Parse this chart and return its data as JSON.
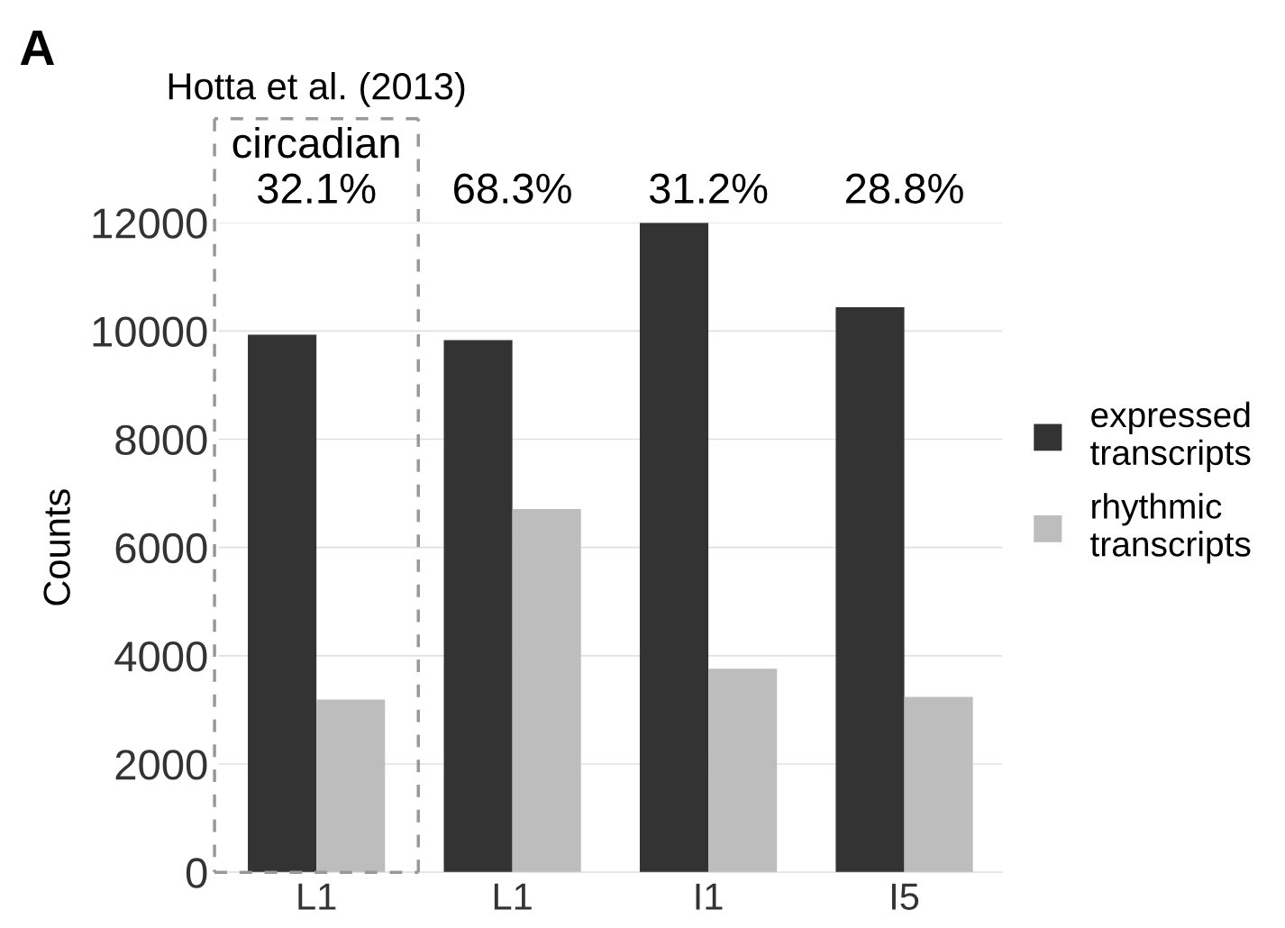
{
  "chart_data": {
    "type": "bar",
    "title": "A",
    "ylabel": "Counts",
    "categories": [
      "L1",
      "L1",
      "I1",
      "I5"
    ],
    "series": [
      {
        "name": "expressed transcripts",
        "color": "#333333",
        "values": [
          9930,
          9830,
          12000,
          10440
        ]
      },
      {
        "name": "rhythmic transcripts",
        "color": "#bdbdbd",
        "values": [
          3190,
          6710,
          3760,
          3240
        ]
      }
    ],
    "ylim": [
      0,
      12000
    ],
    "yticks": [
      0,
      2000,
      4000,
      6000,
      8000,
      10000,
      12000
    ],
    "grid": "y",
    "legend": "right",
    "annotations": [
      "Hotta et al. (2013)",
      "circadian",
      "32.1%",
      "68.3%",
      "31.2%",
      "28.8%"
    ]
  }
}
